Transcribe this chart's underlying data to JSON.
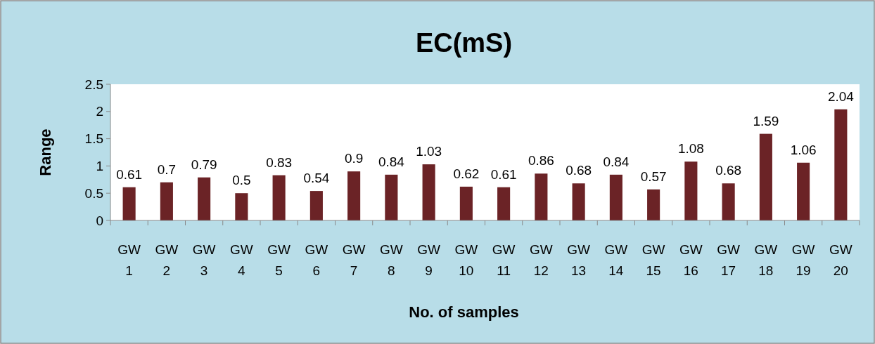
{
  "chart_data": {
    "type": "bar",
    "title": "EC(mS)",
    "xlabel": "No. of samples",
    "ylabel": "Range",
    "categories": [
      "GW 1",
      "GW 2",
      "GW 3",
      "GW 4",
      "GW 5",
      "GW 6",
      "GW 7",
      "GW 8",
      "GW 9",
      "GW 10",
      "GW 11",
      "GW 12",
      "GW 13",
      "GW 14",
      "GW 15",
      "GW 16",
      "GW 17",
      "GW 18",
      "GW 19",
      "GW 20"
    ],
    "values": [
      0.61,
      0.7,
      0.79,
      0.5,
      0.83,
      0.54,
      0.9,
      0.84,
      1.03,
      0.62,
      0.61,
      0.86,
      0.68,
      0.84,
      0.57,
      1.08,
      0.68,
      1.59,
      1.06,
      2.04
    ],
    "color": "#6b2326",
    "ylim": [
      0,
      2.5
    ],
    "yticks": [
      0,
      0.5,
      1,
      1.5,
      2,
      2.5
    ],
    "grid": false,
    "data_labels": true
  }
}
